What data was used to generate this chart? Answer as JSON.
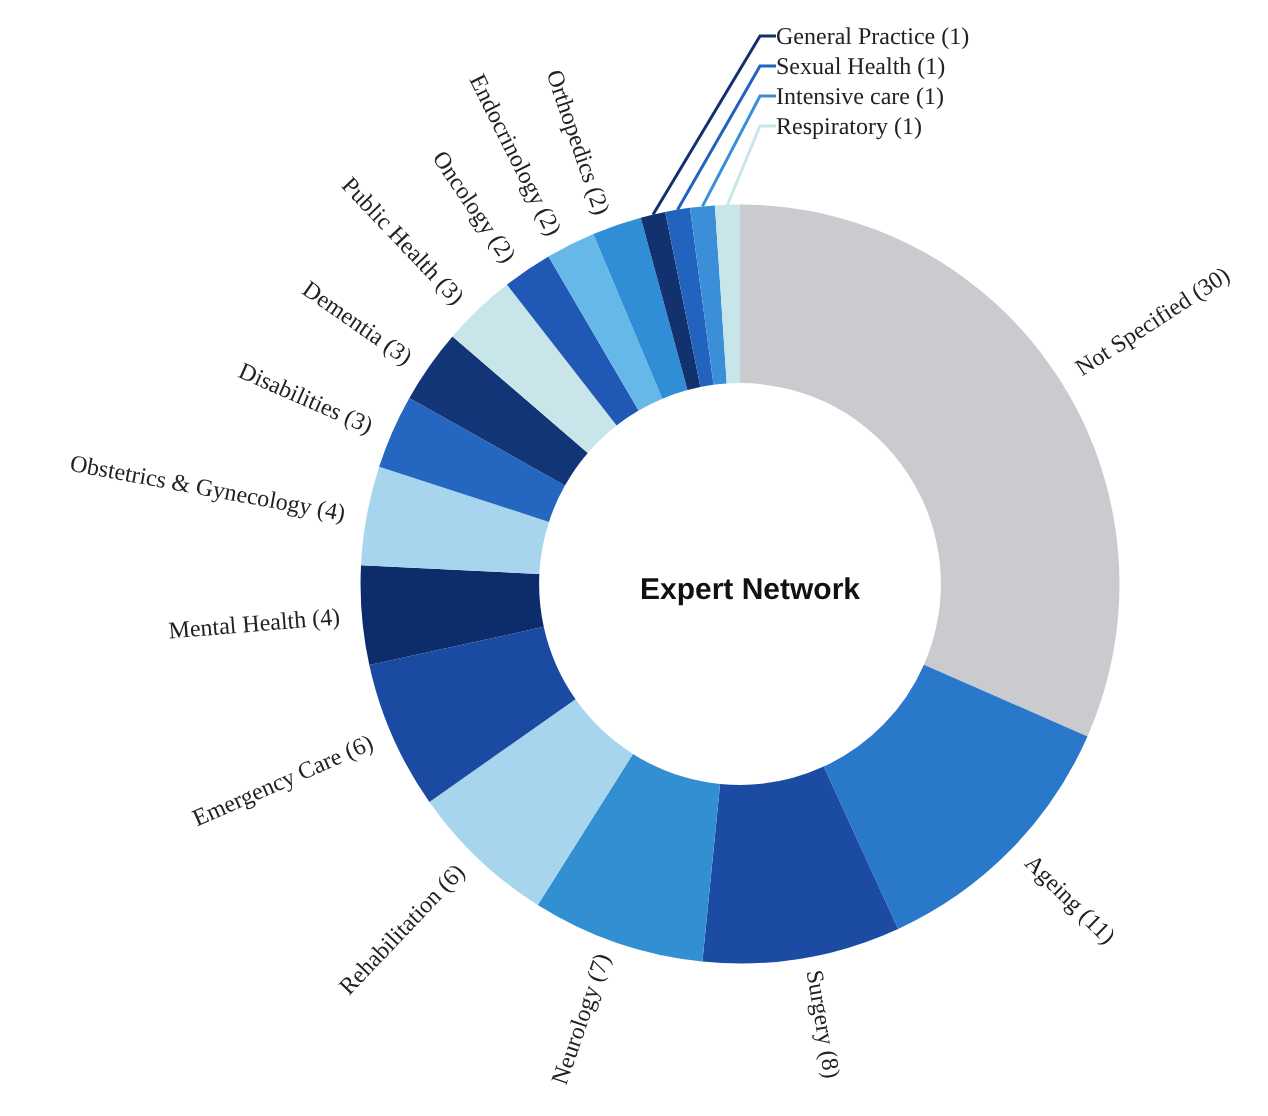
{
  "chart_data": {
    "type": "donut",
    "title": "Expert Network",
    "categories": [
      "Not Specified",
      "Ageing",
      "Surgery",
      "Neurology",
      "Rehabilitation",
      "Emergency Care",
      "Mental Health",
      "Obstetrics & Gynecology",
      "Disabilities",
      "Dementia",
      "Public Health",
      "Oncology",
      "Endocrinology",
      "Orthopedics",
      "General Practice",
      "Sexual Health",
      "Intensive care",
      "Respiratory"
    ],
    "values": [
      30,
      11,
      8,
      7,
      6,
      6,
      4,
      4,
      3,
      3,
      3,
      2,
      2,
      2,
      1,
      1,
      1,
      1
    ],
    "colors": [
      "#c9cbce",
      "#2a78c9",
      "#1c4ba3",
      "#3290d2",
      "#a8d5ee",
      "#1b4aa2",
      "#0c2c6b",
      "#a8d5ee",
      "#2466c0",
      "#123577",
      "#c8e6ea",
      "#1f58b5",
      "#66b8e8",
      "#2f8ed6",
      "#12316f",
      "#2163bf",
      "#3a8fd8",
      "#c8e6ea"
    ],
    "value_labels": [
      "(30)",
      "(11)",
      "(8)",
      "(7)",
      "(6)",
      "(6)",
      "(4)",
      "(4)",
      "(3)",
      "(3)",
      "(3)",
      "(2)",
      "(2)",
      "(2)",
      "(1)",
      "(1)",
      "(1)",
      "(1)"
    ]
  }
}
